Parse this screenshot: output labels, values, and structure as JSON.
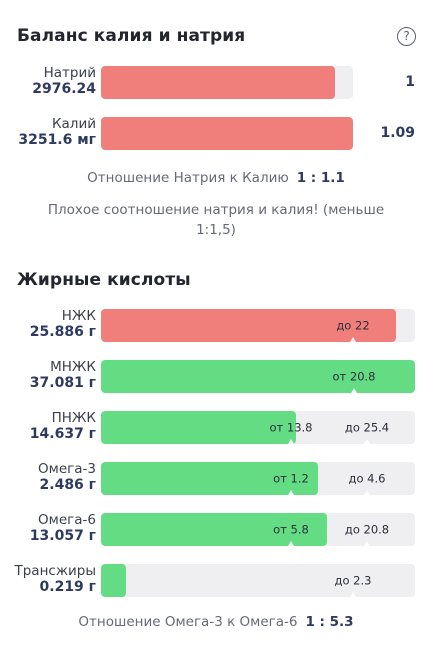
{
  "sodium_potassium": {
    "title": "Баланс калия и натрия",
    "help_icon": "question-circle-icon",
    "rows": [
      {
        "name": "Натрий",
        "amount": "2976.24",
        "ratio": "1",
        "fill_fraction": 0.93,
        "color": "#f07e7b"
      },
      {
        "name": "Калий",
        "amount": "3251.6 мг",
        "ratio": "1.09",
        "fill_fraction": 1.0,
        "color": "#f07e7b"
      }
    ],
    "ratio_label": "Отношение Натрия к Калию",
    "ratio_value": "1 : 1.1",
    "warning": "Плохое соотношение натрия и калия! (меньше 1:1,5)"
  },
  "fatty_acids": {
    "title": "Жирные кислоты",
    "rows": [
      {
        "name": "НЖК",
        "amount": "25.886 г",
        "fill_fraction": 0.94,
        "color": "#f07e7b",
        "min_label": "",
        "max_label": "до 22"
      },
      {
        "name": "МНЖК",
        "amount": "37.081 г",
        "fill_fraction": 1.0,
        "color": "#63dc84",
        "min_label": "от 20.8",
        "max_label": ""
      },
      {
        "name": "ПНЖК",
        "amount": "14.637 г",
        "fill_fraction": 0.62,
        "color": "#63dc84",
        "min_label": "от 13.8",
        "max_label": "до 25.4"
      },
      {
        "name": "Омега-3",
        "amount": "2.486 г",
        "fill_fraction": 0.69,
        "color": "#63dc84",
        "min_label": "от 1.2",
        "max_label": "до 4.6"
      },
      {
        "name": "Омега-6",
        "amount": "13.057 г",
        "fill_fraction": 0.72,
        "color": "#63dc84",
        "min_label": "от 5.8",
        "max_label": "до 20.8"
      },
      {
        "name": "Трансжиры",
        "amount": "0.219 г",
        "fill_fraction": 0.08,
        "color": "#63dc84",
        "min_label": "",
        "max_label": "до 2.3"
      }
    ],
    "ratio_label": "Отношение Омега-3 к Омега-6",
    "ratio_value": "1 : 5.3"
  }
}
